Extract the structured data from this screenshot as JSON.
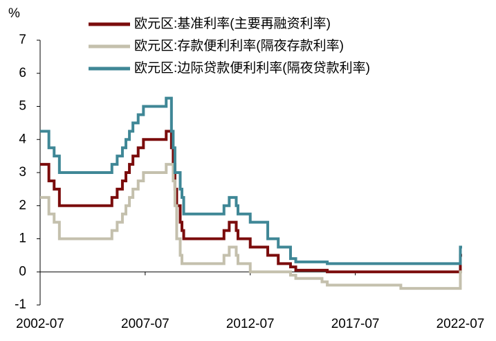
{
  "chart_data": {
    "type": "step-line",
    "y_label": "%",
    "x": [
      "2002-07",
      "2002-12",
      "2003-03",
      "2003-06",
      "2005-12",
      "2006-03",
      "2006-06",
      "2006-08",
      "2006-10",
      "2006-12",
      "2007-03",
      "2007-06",
      "2008-07",
      "2008-10",
      "2008-11",
      "2008-12",
      "2009-01",
      "2009-03",
      "2009-04",
      "2009-05",
      "2011-04",
      "2011-07",
      "2011-11",
      "2011-12",
      "2012-07",
      "2013-05",
      "2013-11",
      "2014-06",
      "2014-09",
      "2015-12",
      "2016-03",
      "2019-09",
      "2022-07"
    ],
    "series": [
      {
        "name": "欧元区:基准利率(主要再融资利率)",
        "color": "#7b0c0c",
        "values": [
          3.25,
          2.75,
          2.5,
          2.0,
          2.25,
          2.5,
          2.75,
          3.0,
          3.25,
          3.5,
          3.75,
          4.0,
          4.25,
          3.75,
          3.25,
          2.5,
          2.0,
          1.5,
          1.25,
          1.0,
          1.25,
          1.5,
          1.25,
          1.0,
          0.75,
          0.5,
          0.25,
          0.15,
          0.05,
          0.05,
          0.0,
          0.0,
          0.5
        ]
      },
      {
        "name": "欧元区:存款便利利率(隔夜存款利率)",
        "color": "#c4c0ad",
        "values": [
          2.25,
          1.75,
          1.5,
          1.0,
          1.25,
          1.5,
          1.75,
          2.0,
          2.25,
          2.5,
          2.75,
          3.0,
          3.25,
          3.25,
          2.75,
          2.0,
          1.0,
          0.5,
          0.25,
          0.25,
          0.5,
          0.75,
          0.5,
          0.25,
          0.0,
          0.0,
          0.0,
          -0.1,
          -0.2,
          -0.3,
          -0.4,
          -0.5,
          0.0
        ]
      },
      {
        "name": "欧元区:边际贷款便利利率(隔夜贷款利率)",
        "color": "#3f8796",
        "values": [
          4.25,
          3.75,
          3.5,
          3.0,
          3.25,
          3.5,
          3.75,
          4.0,
          4.25,
          4.5,
          4.75,
          5.0,
          5.25,
          4.25,
          3.75,
          3.0,
          3.0,
          2.5,
          2.25,
          1.75,
          2.0,
          2.25,
          2.0,
          1.75,
          1.5,
          1.0,
          0.75,
          0.4,
          0.3,
          0.3,
          0.25,
          0.25,
          0.75
        ]
      }
    ],
    "xlim": [
      "2002-07",
      "2022-08"
    ],
    "xticks": [
      "2002-07",
      "2007-07",
      "2012-07",
      "2017-07",
      "2022-07"
    ],
    "ylim": [
      -1,
      7
    ],
    "yticks": [
      -1,
      0,
      1,
      2,
      3,
      4,
      5,
      6,
      7
    ],
    "grid": false
  }
}
